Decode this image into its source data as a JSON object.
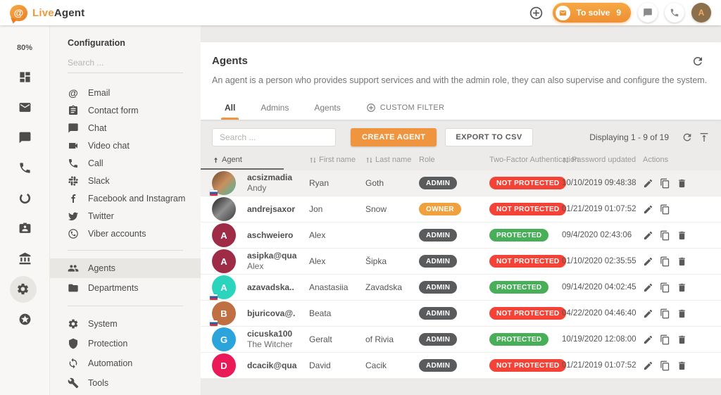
{
  "colors": {
    "accent": "#F0953F",
    "admin_badge": "#5A5B5D",
    "owner_badge": "#F0A13E",
    "protected_badge": "#46AF57",
    "not_protected_badge": "#F44336",
    "topbar_avatar_bg": "#8C6F4B",
    "topbar_avatar_fg": "#F4A964"
  },
  "topbar": {
    "logo": {
      "icon": "logo-bubble-at-icon",
      "live": "Live",
      "agent": "Agent"
    },
    "add_icon": "plus-circle",
    "to_solve": {
      "icon": "envelope",
      "label": "To solve",
      "count": "9"
    },
    "chat_icon": "chat",
    "call_icon": "phone",
    "profile_letter": "A"
  },
  "left_rail": {
    "usage": "80%",
    "items": [
      {
        "icon": "dashboard",
        "active": false
      },
      {
        "icon": "mail",
        "active": false
      },
      {
        "icon": "chat",
        "active": false
      },
      {
        "icon": "phone",
        "active": false
      },
      {
        "icon": "donut",
        "active": false
      },
      {
        "icon": "contact-card",
        "active": false
      },
      {
        "icon": "bank",
        "active": false
      },
      {
        "icon": "gear",
        "active": true
      },
      {
        "icon": "stars",
        "active": false
      }
    ]
  },
  "sidebar": {
    "title": "Configuration",
    "search_placeholder": "Search ...",
    "groups": [
      {
        "items": [
          {
            "label": "Email",
            "icon": "at",
            "active": false
          },
          {
            "label": "Contact form",
            "icon": "form",
            "active": false
          },
          {
            "label": "Chat",
            "icon": "chat",
            "active": false
          },
          {
            "label": "Video chat",
            "icon": "video",
            "active": false
          },
          {
            "label": "Call",
            "icon": "phone",
            "active": false
          },
          {
            "label": "Slack",
            "icon": "slack",
            "active": false
          },
          {
            "label": "Facebook and Instagram",
            "icon": "facebook",
            "active": false
          },
          {
            "label": "Twitter",
            "icon": "twitter",
            "active": false
          },
          {
            "label": "Viber accounts",
            "icon": "viber",
            "active": false
          }
        ]
      },
      {
        "items": [
          {
            "label": "Agents",
            "icon": "people",
            "active": true
          },
          {
            "label": "Departments",
            "icon": "folder",
            "active": false
          }
        ]
      },
      {
        "items": [
          {
            "label": "System",
            "icon": "gear",
            "active": false
          },
          {
            "label": "Protection",
            "icon": "shield",
            "active": false
          },
          {
            "label": "Automation",
            "icon": "sync",
            "active": false
          },
          {
            "label": "Tools",
            "icon": "wrench",
            "active": false
          }
        ]
      }
    ]
  },
  "main": {
    "title": "Agents",
    "refresh_icon": "refresh",
    "description": "An agent is a person who provides support services and with the admin role, they can also supervise and configure the system.",
    "tabs": [
      {
        "label": "All",
        "active": true
      },
      {
        "label": "Admins",
        "active": false
      },
      {
        "label": "Agents",
        "active": false
      },
      {
        "label": "CUSTOM FILTER",
        "active": false,
        "icon": "plus-circle"
      }
    ],
    "toolbar": {
      "search_placeholder": "Search ...",
      "create_label": "CREATE AGENT",
      "export_label": "EXPORT TO CSV",
      "displaying": "Displaying 1 - 9 of 19",
      "icons": [
        "refresh",
        "align-top"
      ]
    },
    "table": {
      "columns": [
        {
          "label": "Agent",
          "sort": "asc",
          "active": true
        },
        {
          "label": "First name",
          "sort": "both"
        },
        {
          "label": "Last name",
          "sort": "both"
        },
        {
          "label": "Role"
        },
        {
          "label": "Two-Factor Authentication"
        },
        {
          "label": "Password updated",
          "sort": "both"
        },
        {
          "label": "Actions"
        }
      ],
      "rows": [
        {
          "highlight": true,
          "avatar": {
            "kind": "photo",
            "gradient": [
              "#6F4A32",
              "#C98F5E",
              "#49B8A0"
            ],
            "flag": "sk"
          },
          "username": "acsizmadia",
          "subname": "Andy",
          "first": "Ryan",
          "last": "Goth",
          "role": "ADMIN",
          "twofa": "NOT PROTECTED",
          "updated": "10/10/2019 09:48:38",
          "actions": [
            "edit",
            "copy",
            "delete"
          ]
        },
        {
          "highlight": false,
          "avatar": {
            "kind": "photo",
            "gradient": [
              "#1C1C1C",
              "#8F8F8F",
              "#3A3A3A"
            ],
            "flag": null
          },
          "username": "andrejsaxor",
          "subname": "",
          "first": "Jon",
          "last": "Snow",
          "role": "OWNER",
          "twofa": "NOT PROTECTED",
          "updated": "01/21/2019 01:07:52",
          "actions": [
            "edit",
            "copy"
          ]
        },
        {
          "highlight": false,
          "avatar": {
            "kind": "letter",
            "letter": "A",
            "color": "#9E2C47",
            "flag": null
          },
          "username": "aschweiero",
          "subname": "",
          "first": "Alex",
          "last": "",
          "role": "ADMIN",
          "twofa": "PROTECTED",
          "updated": "09/4/2020 02:43:06",
          "actions": [
            "edit",
            "copy",
            "delete"
          ]
        },
        {
          "highlight": false,
          "avatar": {
            "kind": "letter",
            "letter": "A",
            "color": "#9E2C47",
            "flag": null
          },
          "username": "asipka@qua",
          "subname": "Alex",
          "first": "Alex",
          "last": "Šipka",
          "role": "ADMIN",
          "twofa": "NOT PROTECTED",
          "updated": "01/10/2020 02:35:55",
          "actions": [
            "edit",
            "copy",
            "delete"
          ]
        },
        {
          "highlight": false,
          "avatar": {
            "kind": "letter",
            "letter": "A",
            "color": "#2BD4BC",
            "flag": "sk"
          },
          "username": "azavadska..",
          "subname": "",
          "first": "Anastasiia",
          "last": "Zavadska",
          "role": "ADMIN",
          "twofa": "PROTECTED",
          "updated": "09/14/2020 04:02:45",
          "actions": [
            "edit",
            "copy",
            "delete"
          ]
        },
        {
          "highlight": false,
          "avatar": {
            "kind": "letter",
            "letter": "B",
            "color": "#C06F42",
            "flag": "sk"
          },
          "username": "bjuricova@.",
          "subname": "",
          "first": "Beata",
          "last": "",
          "role": "ADMIN",
          "twofa": "NOT PROTECTED",
          "updated": "04/22/2020 04:46:40",
          "actions": [
            "edit",
            "copy",
            "delete"
          ]
        },
        {
          "highlight": false,
          "avatar": {
            "kind": "letter",
            "letter": "G",
            "color": "#2BA4DC",
            "flag": null
          },
          "username": "cicuska100",
          "subname": "The Witcher",
          "first": "Geralt",
          "last": "of Rivia",
          "role": "ADMIN",
          "twofa": "PROTECTED",
          "updated": "10/19/2020 12:08:00",
          "actions": [
            "edit",
            "copy",
            "delete"
          ]
        },
        {
          "highlight": false,
          "avatar": {
            "kind": "letter",
            "letter": "D",
            "color": "#EA1A58",
            "flag": null
          },
          "username": "dcacik@qua",
          "subname": "",
          "first": "David",
          "last": "Cacik",
          "role": "ADMIN",
          "twofa": "NOT PROTECTED",
          "updated": "01/21/2019 01:07:52",
          "actions": [
            "edit",
            "copy",
            "delete"
          ]
        }
      ]
    }
  }
}
